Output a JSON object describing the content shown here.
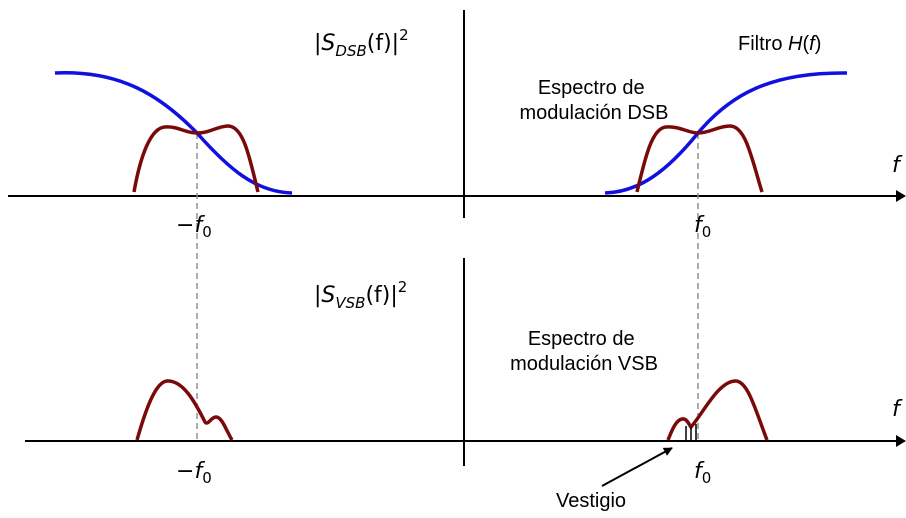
{
  "colors": {
    "filter_curve": "#1010e0",
    "spectrum_curve": "#7a0a0a",
    "axis": "#000000",
    "guide_dashed": "#909090"
  },
  "top_panel": {
    "psd_label": {
      "open": "|",
      "s": "S",
      "sub": "DSB",
      "arg": "(f)|",
      "sup": "2"
    },
    "filter_label": {
      "text": "Filtro ",
      "h": "H",
      "paren_open": "(",
      "f": "f",
      "paren_close": ")"
    },
    "spectrum_label": [
      "Espectro de",
      "modulación DSB"
    ],
    "axis_symbol": "f",
    "tick_neg": {
      "sign": "−",
      "f": "f",
      "sub": "0"
    },
    "tick_pos": {
      "f": "f",
      "sub": "0"
    }
  },
  "bottom_panel": {
    "psd_label": {
      "open": "|",
      "s": "S",
      "sub": "VSB",
      "arg": "(f)|",
      "sup": "2"
    },
    "spectrum_label": [
      "Espectro de",
      "modulación VSB"
    ],
    "axis_symbol": "f",
    "tick_neg": {
      "sign": "−",
      "f": "f",
      "sub": "0"
    },
    "tick_pos": {
      "f": "f",
      "sub": "0"
    },
    "vestige_label": "Vestigio"
  }
}
